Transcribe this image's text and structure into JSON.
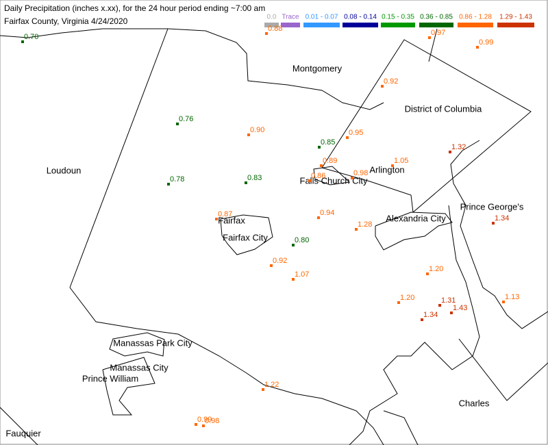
{
  "header": {
    "title": "Daily Precipitation (inches  x.xx),  for the 24 hour period ending ~7:00 am",
    "subtitle": "Fairfax County, Virginia  4/24/2020"
  },
  "legend": [
    {
      "label": "0.0",
      "color": "#aaaaaa"
    },
    {
      "label": "Trace",
      "color": "#9966cc"
    },
    {
      "label": "0.01 - 0.07",
      "color": "#3399ff"
    },
    {
      "label": "0.08 - 0.14",
      "color": "#000099"
    },
    {
      "label": "0.15 - 0.35",
      "color": "#009900"
    },
    {
      "label": "0.36 - 0.85",
      "color": "#006600"
    },
    {
      "label": "0.86 - 1.28",
      "color": "#ff6600"
    },
    {
      "label": "1.29 - 1.43",
      "color": "#cc3300"
    }
  ],
  "places": [
    "Montgomery",
    "District of Columbia",
    "Loudoun",
    "Arlington",
    "Falls Church City",
    "Prince George's",
    "Alexandria City",
    "Fairfax",
    "Fairfax City",
    "Manassas Park City",
    "Manassas City",
    "Prince William",
    "Charles",
    "Fauquier"
  ],
  "stations": [
    {
      "value": "0.70",
      "color": "#006600"
    },
    {
      "value": "0.88",
      "color": "#ff6600"
    },
    {
      "value": "0.97",
      "color": "#ff6600"
    },
    {
      "value": "0.99",
      "color": "#ff6600"
    },
    {
      "value": "0.92",
      "color": "#ff6600"
    },
    {
      "value": "0.76",
      "color": "#006600"
    },
    {
      "value": "0.90",
      "color": "#ff6600"
    },
    {
      "value": "0.95",
      "color": "#ff6600"
    },
    {
      "value": "0.85",
      "color": "#006600"
    },
    {
      "value": "1.32",
      "color": "#cc3300"
    },
    {
      "value": "0.89",
      "color": "#ff6600"
    },
    {
      "value": "1.05",
      "color": "#ff6600"
    },
    {
      "value": "0.98",
      "color": "#ff6600"
    },
    {
      "value": "0.86",
      "color": "#ff6600"
    },
    {
      "value": "0.78",
      "color": "#006600"
    },
    {
      "value": "0.83",
      "color": "#006600"
    },
    {
      "value": "0.87",
      "color": "#ff6600"
    },
    {
      "value": "0.94",
      "color": "#ff6600"
    },
    {
      "value": "1.28",
      "color": "#ff6600"
    },
    {
      "value": "1.34",
      "color": "#cc3300"
    },
    {
      "value": "0.80",
      "color": "#006600"
    },
    {
      "value": "0.92",
      "color": "#ff6600"
    },
    {
      "value": "1.07",
      "color": "#ff6600"
    },
    {
      "value": "1.20",
      "color": "#ff6600"
    },
    {
      "value": "1.20",
      "color": "#ff6600"
    },
    {
      "value": "1.31",
      "color": "#cc3300"
    },
    {
      "value": "1.13",
      "color": "#ff6600"
    },
    {
      "value": "1.43",
      "color": "#cc3300"
    },
    {
      "value": "1.34",
      "color": "#cc3300"
    },
    {
      "value": "1.22",
      "color": "#ff6600"
    },
    {
      "value": "0.99",
      "color": "#ff6600"
    },
    {
      "value": "0.98",
      "color": "#ff6600"
    }
  ]
}
